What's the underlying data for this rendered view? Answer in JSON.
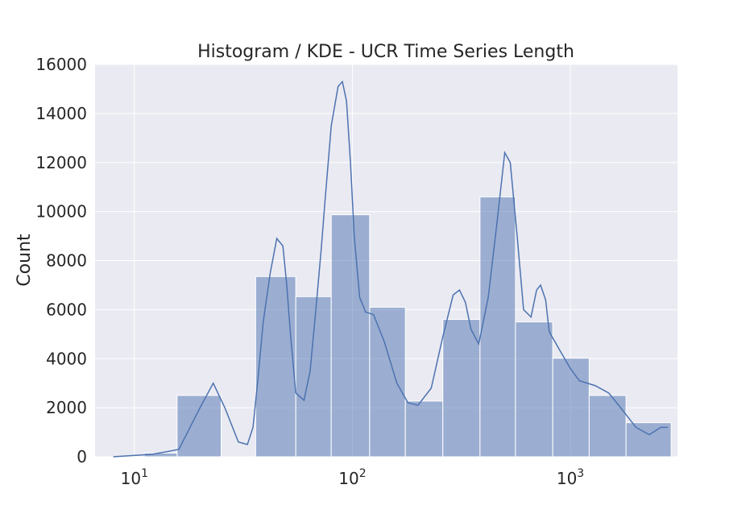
{
  "chart_data": {
    "type": "bar",
    "subtype": "histogram-with-kde",
    "title": "Histogram / KDE - UCR Time Series Length",
    "xlabel": "",
    "ylabel": "Count",
    "xscale": "log",
    "xlim": [
      6.6,
      3100
    ],
    "ylim": [
      0,
      16000
    ],
    "grid": true,
    "background": "#eaeaf2",
    "bar_color": "#4c72b0",
    "line_color": "#4c72b0",
    "yticks": [
      0,
      2000,
      4000,
      6000,
      8000,
      10000,
      12000,
      14000,
      16000
    ],
    "xticks": [
      {
        "value": 10,
        "base": "10",
        "exp": "1"
      },
      {
        "value": 100,
        "base": "10",
        "exp": "2"
      },
      {
        "value": 1000,
        "base": "10",
        "exp": "3"
      }
    ],
    "bins": [
      {
        "left": 7.9,
        "right": 11.1,
        "count": 0
      },
      {
        "left": 11.1,
        "right": 15.7,
        "count": 150
      },
      {
        "left": 15.7,
        "right": 25.0,
        "count": 2500
      },
      {
        "left": 25.0,
        "right": 36.0,
        "count": 0
      },
      {
        "left": 36.0,
        "right": 55.0,
        "count": 7350
      },
      {
        "left": 55.0,
        "right": 80.0,
        "count": 6530
      },
      {
        "left": 80.0,
        "right": 120.0,
        "count": 9870
      },
      {
        "left": 120.0,
        "right": 175.0,
        "count": 6100
      },
      {
        "left": 175.0,
        "right": 260.0,
        "count": 2270
      },
      {
        "left": 260.0,
        "right": 385.0,
        "count": 5600
      },
      {
        "left": 385.0,
        "right": 560.0,
        "count": 10600
      },
      {
        "left": 560.0,
        "right": 830.0,
        "count": 5500
      },
      {
        "left": 830.0,
        "right": 1220.0,
        "count": 4020
      },
      {
        "left": 1220.0,
        "right": 1800.0,
        "count": 2500
      },
      {
        "left": 1800.0,
        "right": 2900.0,
        "count": 1390
      }
    ],
    "kde": {
      "x": [
        8,
        12,
        14,
        16,
        20,
        23,
        26,
        30,
        33,
        35,
        37,
        39,
        42,
        45,
        48,
        50,
        52,
        55,
        60,
        64,
        68,
        72,
        75,
        80,
        86,
        90,
        94,
        98,
        102,
        108,
        115,
        125,
        140,
        160,
        180,
        200,
        230,
        260,
        290,
        310,
        330,
        350,
        380,
        420,
        460,
        500,
        530,
        570,
        610,
        660,
        700,
        730,
        770,
        800,
        900,
        1000,
        1100,
        1300,
        1500,
        1700,
        2000,
        2300,
        2600,
        2800
      ],
      "y": [
        0,
        100,
        200,
        300,
        2000,
        3000,
        2000,
        600,
        500,
        1200,
        3300,
        5500,
        7500,
        8900,
        8600,
        7000,
        5000,
        2600,
        2300,
        3500,
        6000,
        8500,
        10500,
        13500,
        15100,
        15300,
        14500,
        12000,
        9000,
        6500,
        5900,
        5800,
        4700,
        3000,
        2200,
        2100,
        2800,
        4900,
        6600,
        6800,
        6300,
        5200,
        4600,
        6500,
        9500,
        12400,
        12000,
        9000,
        6000,
        5700,
        6800,
        7000,
        6400,
        5100,
        4300,
        3600,
        3100,
        2900,
        2600,
        2000,
        1200,
        900,
        1200,
        1200
      ]
    }
  }
}
